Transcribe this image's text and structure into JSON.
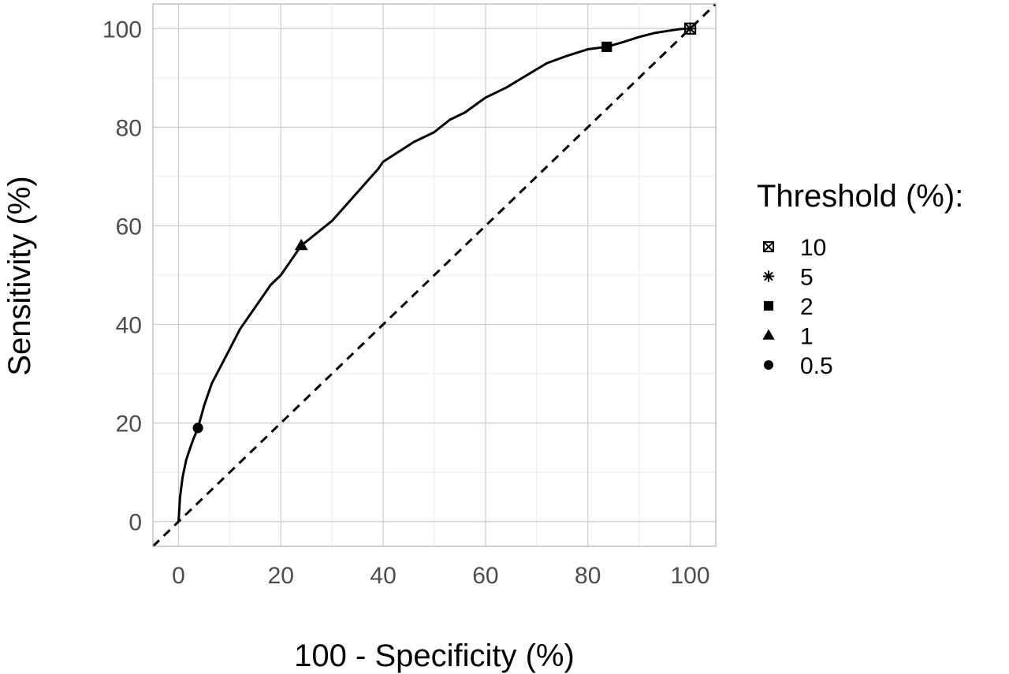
{
  "chart_data": {
    "type": "line",
    "title": "",
    "xlabel": "100 - Specificity (%)",
    "ylabel": "Sensitivity (%)",
    "xlim": [
      -5,
      105
    ],
    "ylim": [
      -5,
      105
    ],
    "x_ticks": [
      0,
      20,
      40,
      60,
      80,
      100
    ],
    "y_ticks": [
      0,
      20,
      40,
      60,
      80,
      100
    ],
    "grid": true,
    "legend": {
      "title": "Threshold (%):",
      "position": "right"
    },
    "roc_curve": {
      "x": [
        0,
        0.3,
        0.8,
        1.5,
        2.3,
        3.0,
        3.8,
        5,
        6.5,
        8,
        10,
        12,
        14,
        16,
        18,
        20,
        22,
        24,
        27,
        30,
        33,
        36,
        39,
        40,
        43,
        46,
        50,
        53,
        56,
        60,
        64,
        68,
        72,
        76,
        80,
        83.7,
        87,
        90,
        93,
        96,
        98,
        100
      ],
      "y": [
        0,
        5,
        9,
        12.5,
        15,
        17,
        19,
        23.5,
        28,
        31,
        35,
        39,
        42,
        45,
        48,
        50,
        53,
        56,
        58.5,
        61,
        64.5,
        68,
        71.5,
        73,
        75,
        77,
        79,
        81.5,
        83,
        86,
        88,
        90.5,
        93,
        94.5,
        95.8,
        96.3,
        97.3,
        98.3,
        99.1,
        99.6,
        99.9,
        100
      ]
    },
    "reference_line": {
      "x": [
        0,
        100
      ],
      "y": [
        0,
        100
      ],
      "style": "dashed"
    },
    "series": [
      {
        "name": "10",
        "marker": "square-x",
        "x": 100,
        "y": 100
      },
      {
        "name": "5",
        "marker": "asterisk",
        "x": 100,
        "y": 100
      },
      {
        "name": "2",
        "marker": "square",
        "x": 83.7,
        "y": 96.3
      },
      {
        "name": "1",
        "marker": "triangle",
        "x": 24,
        "y": 56
      },
      {
        "name": "0.5",
        "marker": "circle",
        "x": 3.8,
        "y": 19
      }
    ],
    "colors": {
      "line": "#000000",
      "grid_major": "#cccccc",
      "grid_minor": "#ebebeb",
      "panel_border": "#b3b3b3",
      "tick_text": "#4d4d4d"
    }
  }
}
